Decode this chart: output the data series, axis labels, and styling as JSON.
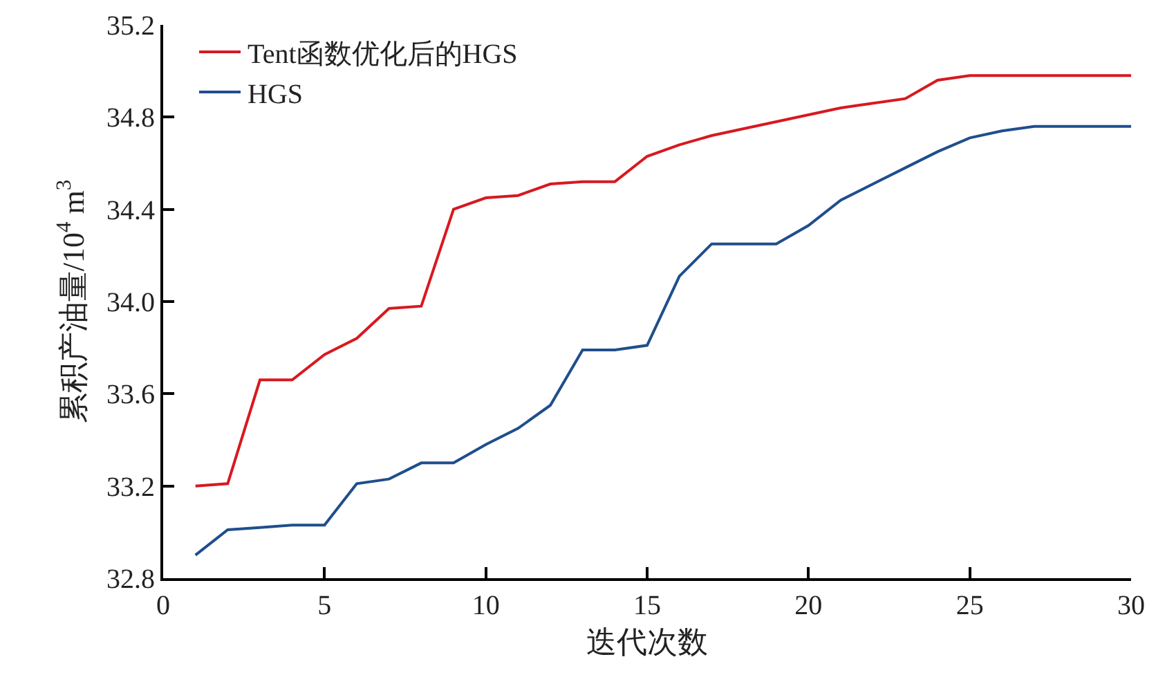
{
  "chart_data": {
    "type": "line",
    "xlabel": "迭代次数",
    "ylabel": "累积产油量/10$^{4}$ m$^{3}$",
    "x": [
      1,
      2,
      3,
      4,
      5,
      6,
      7,
      8,
      9,
      10,
      11,
      12,
      13,
      14,
      15,
      16,
      17,
      18,
      19,
      20,
      21,
      22,
      23,
      24,
      25,
      26,
      27,
      28,
      29,
      30
    ],
    "series": [
      {
        "name": "Tent函数优化后的HGS",
        "color": "#d7191f",
        "values": [
          33.2,
          33.21,
          33.66,
          33.66,
          33.77,
          33.84,
          33.97,
          33.98,
          34.4,
          34.45,
          34.46,
          34.51,
          34.52,
          34.52,
          34.63,
          34.68,
          34.72,
          34.75,
          34.78,
          34.81,
          34.84,
          34.86,
          34.88,
          34.96,
          34.98,
          34.98,
          34.98,
          34.98,
          34.98,
          34.98
        ]
      },
      {
        "name": "HGS",
        "color": "#1f4e8c",
        "values": [
          32.9,
          33.01,
          33.02,
          33.03,
          33.03,
          33.21,
          33.23,
          33.3,
          33.3,
          33.38,
          33.45,
          33.55,
          33.79,
          33.79,
          33.81,
          34.11,
          34.25,
          34.25,
          34.25,
          34.33,
          34.44,
          34.51,
          34.58,
          34.65,
          34.71,
          34.74,
          34.76,
          34.76,
          34.76,
          34.76
        ]
      }
    ],
    "xlim": [
      0,
      30
    ],
    "xticks": [
      0,
      5,
      10,
      15,
      20,
      25,
      30
    ],
    "ylim": [
      32.8,
      35.2
    ],
    "yticks": [
      {
        "value": 32.8,
        "label": "32.8"
      },
      {
        "value": 33.2,
        "label": "33.2"
      },
      {
        "value": 33.6,
        "label": "33.6"
      },
      {
        "value": 34.0,
        "label": "34.0"
      },
      {
        "value": 34.4,
        "label": "34.4"
      },
      {
        "value": 34.8,
        "label": "34.8"
      },
      {
        "value": 35.2,
        "label": "35.2"
      }
    ],
    "grid": false,
    "legend": "top left",
    "marker": "none",
    "line_style": "solid"
  }
}
